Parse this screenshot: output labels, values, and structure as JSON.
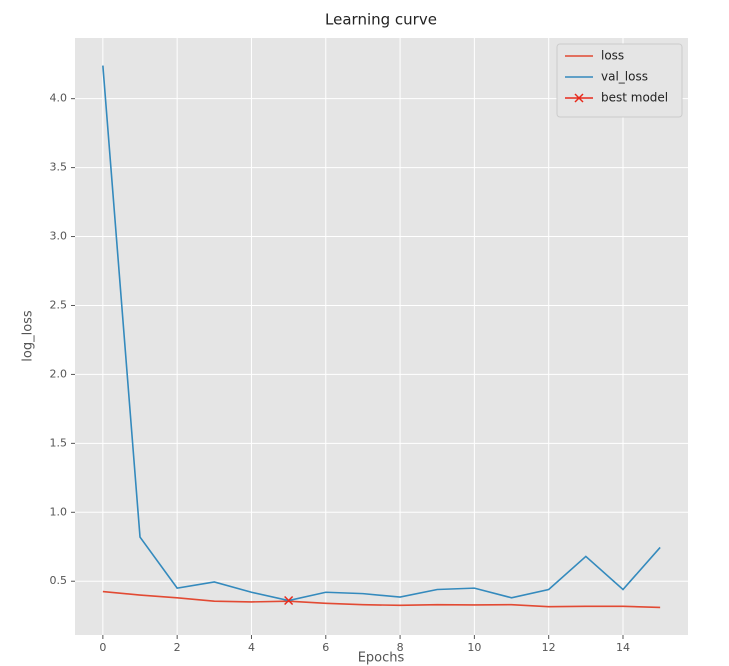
{
  "chart_data": {
    "type": "line",
    "title": "Learning curve",
    "x_label": "Epochs",
    "y_label": "log_loss",
    "x": [
      0,
      1,
      2,
      3,
      4,
      5,
      6,
      7,
      8,
      9,
      10,
      11,
      12,
      13,
      14,
      15
    ],
    "series": [
      {
        "name": "loss",
        "color": "#e24a33",
        "values": [
          0.425,
          0.4,
          0.38,
          0.355,
          0.35,
          0.355,
          0.34,
          0.33,
          0.325,
          0.33,
          0.328,
          0.33,
          0.315,
          0.318,
          0.318,
          0.31
        ]
      },
      {
        "name": "val_loss",
        "color": "#348abd",
        "values": [
          4.24,
          0.82,
          0.45,
          0.495,
          0.42,
          0.36,
          0.42,
          0.41,
          0.385,
          0.44,
          0.45,
          0.38,
          0.44,
          0.68,
          0.44,
          0.745
        ]
      },
      {
        "name": "best model",
        "color": "#e8291c",
        "marker": "x",
        "x": [
          5
        ],
        "values": [
          0.36
        ]
      }
    ],
    "xlim": [
      -0.75,
      15.75
    ],
    "ylim": [
      0.11,
      4.44
    ],
    "xticks": [
      0,
      2,
      4,
      6,
      8,
      10,
      12,
      14
    ],
    "yticks": [
      0.5,
      {
        "value": 1,
        "label": "1.0"
      },
      1.5,
      {
        "value": 2,
        "label": "2.0"
      },
      2.5,
      {
        "value": 3,
        "label": "3.0"
      },
      3.5,
      {
        "value": 4,
        "label": "4.0"
      }
    ],
    "grid": true,
    "legend": "upper right"
  }
}
